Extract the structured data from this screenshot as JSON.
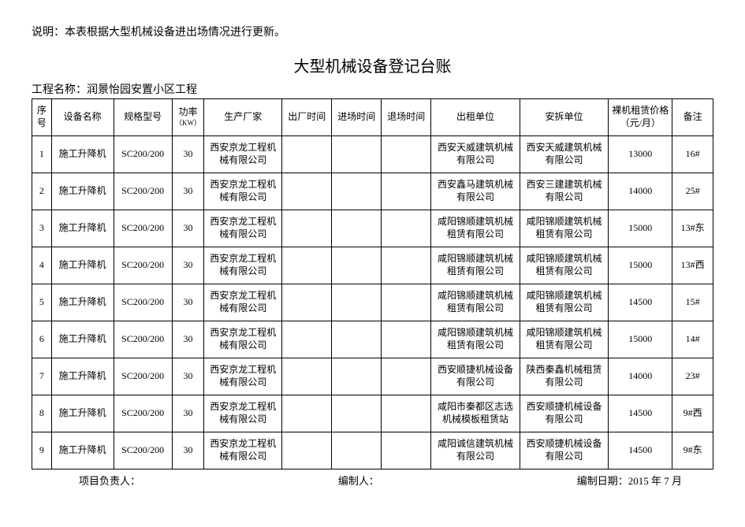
{
  "note": "说明：本表根据大型机械设备进出场情况进行更新。",
  "title": "大型机械设备登记台账",
  "project_label": "工程名称：润景怡园安置小区工程",
  "headers": {
    "seq": "序号",
    "name": "设备名称",
    "model": "规格型号",
    "power": "功率",
    "power_unit": "（KW）",
    "mfr": "生产厂家",
    "out_time": "出厂时间",
    "in_time": "进场时间",
    "ret_time": "退场时间",
    "lessor": "出租单位",
    "installer": "安拆单位",
    "price": "裸机租赁价格（元/月）",
    "remark": "备注"
  },
  "rows": [
    {
      "seq": "1",
      "name": "施工升降机",
      "model": "SC200/200",
      "power": "30",
      "mfr": "西安京龙工程机械有限公司",
      "out": "",
      "in": "",
      "ret": "",
      "lessor": "西安天威建筑机械有限公司",
      "inst": "西安天威建筑机械有限公司",
      "price": "13000",
      "rmk": "16#"
    },
    {
      "seq": "2",
      "name": "施工升降机",
      "model": "SC200/200",
      "power": "30",
      "mfr": "西安京龙工程机械有限公司",
      "out": "",
      "in": "",
      "ret": "",
      "lessor": "西安鑫马建筑机械有限公司",
      "inst": "西安三建建筑机械有限公司",
      "price": "14000",
      "rmk": "25#"
    },
    {
      "seq": "3",
      "name": "施工升降机",
      "model": "SC200/200",
      "power": "30",
      "mfr": "西安京龙工程机械有限公司",
      "out": "",
      "in": "",
      "ret": "",
      "lessor": "咸阳锦顺建筑机械租赁有限公司",
      "inst": "咸阳锦顺建筑机械租赁有限公司",
      "price": "15000",
      "rmk": "13#东"
    },
    {
      "seq": "4",
      "name": "施工升降机",
      "model": "SC200/200",
      "power": "30",
      "mfr": "西安京龙工程机械有限公司",
      "out": "",
      "in": "",
      "ret": "",
      "lessor": "咸阳锦顺建筑机械租赁有限公司",
      "inst": "咸阳锦顺建筑机械租赁有限公司",
      "price": "15000",
      "rmk": "13#西"
    },
    {
      "seq": "5",
      "name": "施工升降机",
      "model": "SC200/200",
      "power": "30",
      "mfr": "西安京龙工程机械有限公司",
      "out": "",
      "in": "",
      "ret": "",
      "lessor": "咸阳锦顺建筑机械租赁有限公司",
      "inst": "咸阳锦顺建筑机械租赁有限公司",
      "price": "14500",
      "rmk": "15#"
    },
    {
      "seq": "6",
      "name": "施工升降机",
      "model": "SC200/200",
      "power": "30",
      "mfr": "西安京龙工程机械有限公司",
      "out": "",
      "in": "",
      "ret": "",
      "lessor": "咸阳锦顺建筑机械租赁有限公司",
      "inst": "咸阳锦顺建筑机械租赁有限公司",
      "price": "15000",
      "rmk": "14#"
    },
    {
      "seq": "7",
      "name": "施工升降机",
      "model": "SC200/200",
      "power": "30",
      "mfr": "西安京龙工程机械有限公司",
      "out": "",
      "in": "",
      "ret": "",
      "lessor": "西安顺捷机械设备有限公司",
      "inst": "陕西秦鑫机械租赁有限公司",
      "price": "14000",
      "rmk": "23#"
    },
    {
      "seq": "8",
      "name": "施工升降机",
      "model": "SC200/200",
      "power": "30",
      "mfr": "西安京龙工程机械有限公司",
      "out": "",
      "in": "",
      "ret": "",
      "lessor": "咸阳市秦都区志选机械模板租赁站",
      "inst": "西安顺捷机械设备有限公司",
      "price": "14500",
      "rmk": "9#西"
    },
    {
      "seq": "9",
      "name": "施工升降机",
      "model": "SC200/200",
      "power": "30",
      "mfr": "西安京龙工程机械有限公司",
      "out": "",
      "in": "",
      "ret": "",
      "lessor": "咸阳诚信建筑机械有限公司",
      "inst": "西安顺捷机械设备有限公司",
      "price": "14500",
      "rmk": "9#东"
    }
  ],
  "footer": {
    "leader": "项目负责人：",
    "preparer": "编制人：",
    "date": "编制日期：2015 年 7 月"
  }
}
